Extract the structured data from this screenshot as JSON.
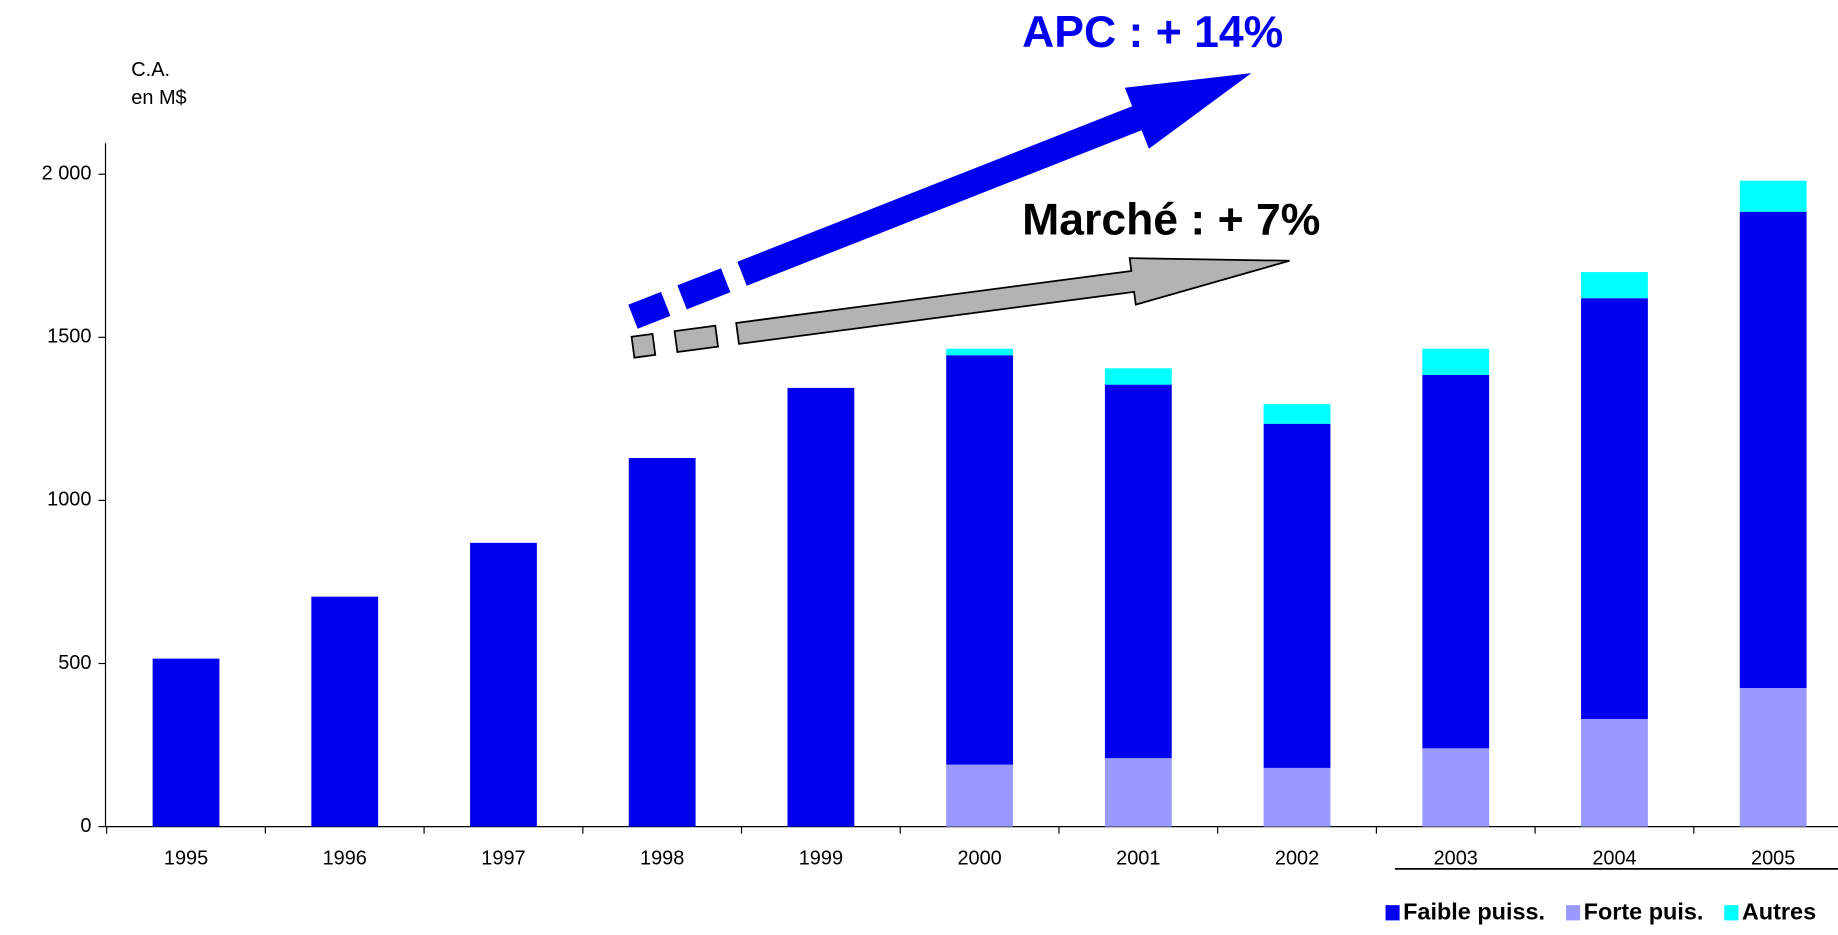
{
  "chart_data": {
    "type": "stacked_bar",
    "y_label": [
      "C.A.",
      "en M$"
    ],
    "annotations": [
      "APC : + 14%",
      "Marché : + 7%"
    ],
    "categories": [
      "1995",
      "1996",
      "1997",
      "1998",
      "1999",
      "2000",
      "2001",
      "2002",
      "2003",
      "2004",
      "2005"
    ],
    "series": [
      {
        "name": "Faible puiss.",
        "color": "#0000ee",
        "values": [
          515,
          705,
          870,
          1130,
          1345,
          1255,
          1145,
          1055,
          1145,
          1290,
          1460
        ]
      },
      {
        "name": "Forte puis.",
        "color": "#9999ff",
        "values": [
          null,
          null,
          null,
          null,
          null,
          190,
          210,
          180,
          240,
          330,
          425
        ]
      },
      {
        "name": "Autres",
        "color": "#00ffff",
        "values": [
          null,
          null,
          null,
          null,
          null,
          20,
          50,
          60,
          80,
          80,
          95
        ]
      }
    ],
    "ylim": [
      0,
      2095
    ],
    "yticks": [
      0,
      500,
      1000,
      1500,
      {
        "value": 2000,
        "label": "2 000"
      }
    ],
    "legend": "bottom-right"
  }
}
